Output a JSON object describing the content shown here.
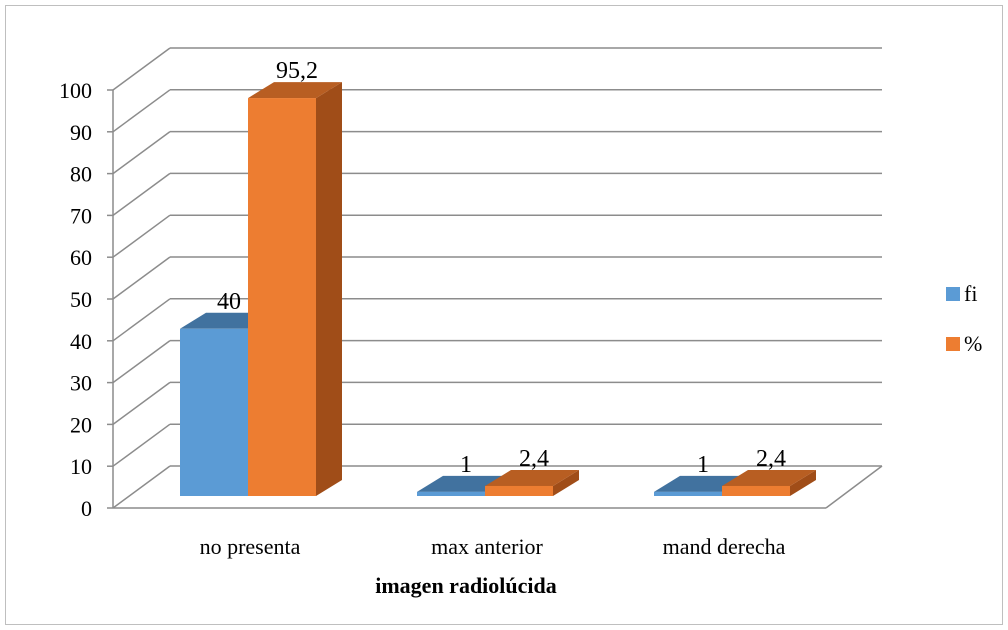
{
  "chart_data": {
    "type": "bar",
    "categories": [
      "no presenta",
      "max anterior",
      "mand derecha"
    ],
    "series": [
      {
        "name": "fi",
        "values": [
          40,
          1,
          1
        ],
        "labels": [
          "40",
          "1",
          "1"
        ]
      },
      {
        "name": "%",
        "values": [
          95.2,
          2.4,
          2.4
        ],
        "labels": [
          "95,2",
          "2,4",
          "2,4"
        ]
      }
    ],
    "xlabel": "imagen radiolúcida",
    "ylabel": "",
    "ylim": [
      0,
      100
    ],
    "yticks": [
      "0",
      "10",
      "20",
      "30",
      "40",
      "50",
      "60",
      "70",
      "80",
      "90",
      "100"
    ],
    "three_d": true,
    "grid": true,
    "legend": "right",
    "colors": {
      "fi": "#5b9bd5",
      "fi_top": "#41729f",
      "fi_side": "#3d6c97",
      "pct": "#ed7d31",
      "pct_top": "#b85e22",
      "pct_side": "#a04d18",
      "grid": "#8c8c8c",
      "frame": "#bfbfbf"
    }
  }
}
